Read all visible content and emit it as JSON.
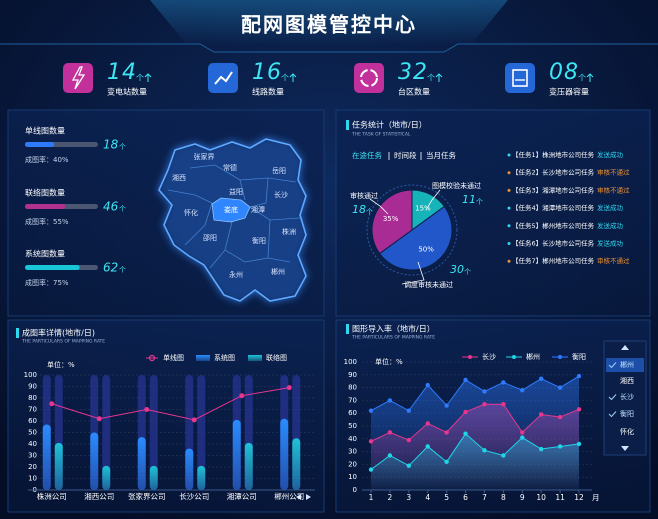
{
  "header": {
    "title": "配网图模管控中心"
  },
  "kpis": [
    {
      "value": "14",
      "unit": "个",
      "label": "变电站数量",
      "color": "#c2309b"
    },
    {
      "value": "16",
      "unit": "个",
      "label": "线路数量",
      "color": "#2468d8"
    },
    {
      "value": "32",
      "unit": "个",
      "label": "台区数量",
      "color": "#c2309b"
    },
    {
      "value": "08",
      "unit": "个",
      "label": "变压器容量",
      "color": "#2468d8"
    }
  ],
  "mapping_counts": [
    {
      "name": "单线图数量",
      "count": "18",
      "unit": "个",
      "rate_label": "成图率：",
      "rate": {
        "value": 40,
        "label": "40%"
      },
      "color": "#2f7bff"
    },
    {
      "name": "联络图数量",
      "count": "46",
      "unit": "个",
      "rate_label": "成图率：",
      "rate": {
        "value": 55,
        "label": "55%"
      },
      "color": "#b2308e"
    },
    {
      "name": "系统图数量",
      "count": "62",
      "unit": "个",
      "rate_label": "成图率：",
      "rate": {
        "value": 75,
        "label": "75%"
      },
      "color": "#18c6d8"
    }
  ],
  "map": {
    "regions": [
      {
        "name": "张家界",
        "selected": false
      },
      {
        "name": "常德",
        "selected": false
      },
      {
        "name": "岳阳",
        "selected": false
      },
      {
        "name": "湘西",
        "selected": false
      },
      {
        "name": "益阳",
        "selected": false
      },
      {
        "name": "长沙",
        "selected": false
      },
      {
        "name": "怀化",
        "selected": false
      },
      {
        "name": "娄底",
        "selected": true
      },
      {
        "name": "湘潭",
        "selected": false
      },
      {
        "name": "邵阳",
        "selected": false
      },
      {
        "name": "株洲",
        "selected": false
      },
      {
        "name": "衡阳",
        "selected": false
      },
      {
        "name": "永州",
        "selected": false
      },
      {
        "name": "郴州",
        "selected": false
      }
    ]
  },
  "task_panel": {
    "title": "任务统计（地市/日）",
    "subtitle": "THE TASK OF STATISTICAL",
    "tabs": [
      {
        "label": "在途任务",
        "active": true
      },
      {
        "label": "时间段",
        "active": false
      },
      {
        "label": "当月任务",
        "active": false
      }
    ],
    "tasks": [
      {
        "name": "【任务1】株洲地市公司任务",
        "status": "发送成功",
        "color": "#2fd8f0"
      },
      {
        "name": "【任务2】长沙地市公司任务",
        "status": "审核不通过",
        "color": "#f0922f"
      },
      {
        "name": "【任务3】湘潭地市公司任务",
        "status": "审核不通过",
        "color": "#f0922f"
      },
      {
        "name": "【任务4】湘潭地市公司任务",
        "status": "发送成功",
        "color": "#2fd8f0"
      },
      {
        "name": "【任务5】郴州地市公司任务",
        "status": "发送成功",
        "color": "#2fd8f0"
      },
      {
        "name": "【任务6】长沙地市公司任务",
        "status": "发送成功",
        "color": "#2fd8f0"
      },
      {
        "name": "【任务7】郴州地市公司任务",
        "status": "审核不通过",
        "color": "#f0922f"
      }
    ]
  },
  "city_filter": [
    {
      "label": "郴州",
      "checked": true,
      "active": true
    },
    {
      "label": "湘西",
      "checked": false,
      "active": false
    },
    {
      "label": "长沙",
      "checked": true,
      "active": false
    },
    {
      "label": "衡阳",
      "checked": true,
      "active": false
    },
    {
      "label": "怀化",
      "checked": false,
      "active": false
    }
  ],
  "chart_data": [
    {
      "type": "pie",
      "categories": [
        "审核通过",
        "图模校验未通过",
        "调度审核未通过"
      ],
      "values": [
        35,
        15,
        50
      ],
      "value_labels": [
        "35%",
        "15%",
        "50%"
      ],
      "colors": [
        "#a82c93",
        "#16b3b8",
        "#2157c9"
      ],
      "counts": [
        18,
        11,
        30
      ],
      "count_unit": "个"
    },
    {
      "type": "bar",
      "title": "成图率详情(地市/日)",
      "subtitle": "THE PARTICULARS OF MAPPING RATE",
      "unit_label": "单位：%",
      "categories": [
        "株洲公司",
        "湘西公司",
        "张家界公司",
        "长沙公司",
        "湘潭公司",
        "郴州公司"
      ],
      "series": [
        {
          "name": "单线图",
          "type": "line",
          "color": "#e8368f",
          "values": [
            75,
            62,
            70,
            61,
            82,
            89
          ]
        },
        {
          "name": "系统图",
          "type": "bar",
          "color": "#2a8cff",
          "values": [
            57,
            50,
            46,
            36,
            61,
            62
          ]
        },
        {
          "name": "联络图",
          "type": "bar",
          "color": "#1fc3d6",
          "values": [
            41,
            21,
            21,
            21,
            41,
            45
          ]
        }
      ],
      "ylim": [
        0,
        100
      ],
      "yticks": [
        0,
        10,
        20,
        30,
        40,
        50,
        60,
        70,
        80,
        90,
        100
      ],
      "grid": true
    },
    {
      "type": "line",
      "title": "图形导入率（地市/日）",
      "subtitle": "THE PARTICULARS OF MAPPING RATE",
      "unit_label": "单位：%",
      "x_label": "月",
      "x": [
        1,
        2,
        3,
        4,
        5,
        6,
        7,
        8,
        9,
        10,
        11,
        12
      ],
      "xlim": [
        1,
        12
      ],
      "xticks": [
        1,
        2,
        3,
        4,
        5,
        6,
        7,
        8,
        9,
        10,
        11,
        12
      ],
      "series": [
        {
          "name": "长沙",
          "color": "#e8368f",
          "values": [
            38,
            45,
            39,
            52,
            45,
            61,
            67,
            67,
            45,
            59,
            57,
            63
          ]
        },
        {
          "name": "郴州",
          "color": "#1fd6e6",
          "values": [
            16,
            27,
            19,
            34,
            22,
            44,
            31,
            27,
            41,
            32,
            34,
            36
          ]
        },
        {
          "name": "衡阳",
          "color": "#2f7bff",
          "values": [
            62,
            70,
            62,
            82,
            66,
            86,
            77,
            84,
            78,
            87,
            80,
            89
          ]
        }
      ],
      "ylim": [
        0,
        100
      ],
      "yticks": [
        0,
        10,
        20,
        30,
        40,
        50,
        60,
        70,
        80,
        90,
        100
      ],
      "grid": true
    }
  ]
}
